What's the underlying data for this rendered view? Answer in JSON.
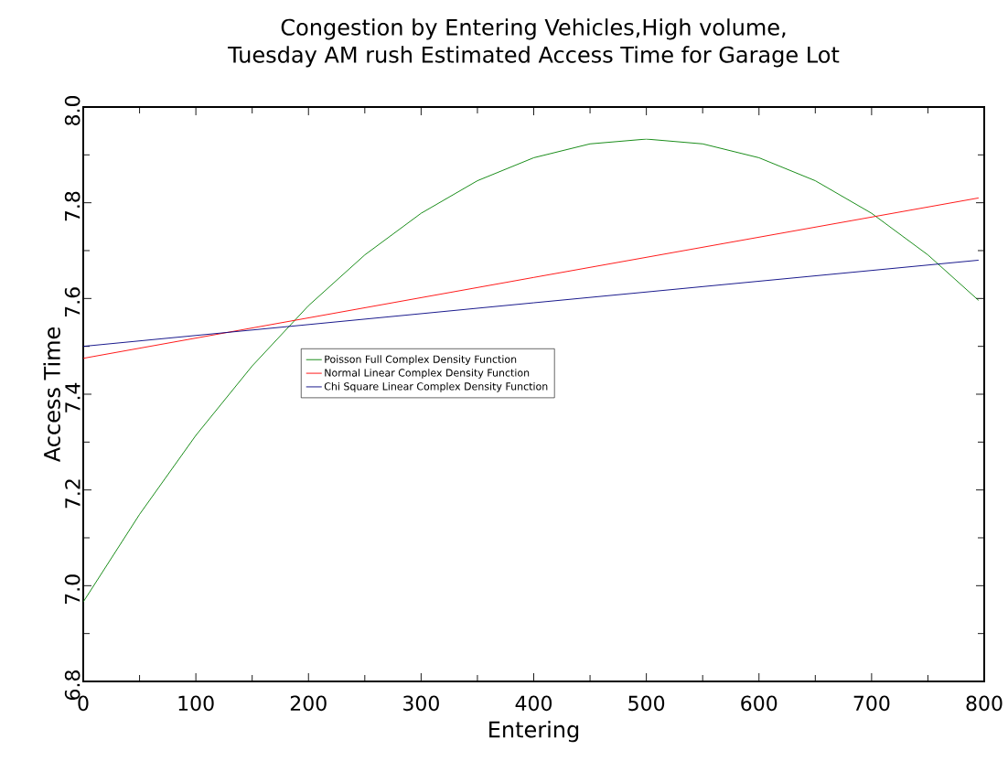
{
  "chart_data": {
    "type": "line",
    "title": "Congestion by Entering Vehicles,High volume,",
    "subtitle": "Tuesday AM rush Estimated Access Time for Garage Lot",
    "xlabel": "Entering",
    "ylabel": "Access Time",
    "xlim": [
      0,
      800
    ],
    "ylim": [
      6.8,
      8.0
    ],
    "xticks": [
      0,
      100,
      200,
      300,
      400,
      500,
      600,
      700,
      800
    ],
    "yticks": [
      {
        "value": 6.8,
        "label": "6.8"
      },
      {
        "value": 7.0,
        "label": "7.0"
      },
      {
        "value": 7.2,
        "label": "7.2"
      },
      {
        "value": 7.4,
        "label": "7.4"
      },
      {
        "value": 7.6,
        "label": "7.6"
      },
      {
        "value": 7.8,
        "label": "7.8"
      },
      {
        "value": 8.0,
        "label": "8.0"
      }
    ],
    "grid": false,
    "legend": "center",
    "marker": "none",
    "line_style": "solid",
    "series": [
      {
        "name": "Poisson Full Complex Density Function",
        "color": "#008000",
        "x": [
          0,
          50,
          100,
          150,
          200,
          250,
          300,
          350,
          400,
          450,
          500,
          550,
          600,
          650,
          700,
          750,
          795
        ],
        "values": [
          6.966,
          7.149,
          7.314,
          7.459,
          7.585,
          7.691,
          7.778,
          7.846,
          7.894,
          7.923,
          7.933,
          7.923,
          7.894,
          7.846,
          7.778,
          7.691,
          7.596
        ]
      },
      {
        "name": "Normal Linear Complex Density Function",
        "color": "#ff0000",
        "x": [
          0,
          400,
          795
        ],
        "values": [
          7.475,
          7.644,
          7.81
        ]
      },
      {
        "name": "Chi Square Linear Complex Density Function",
        "color": "#000080",
        "x": [
          0,
          400,
          795
        ],
        "values": [
          7.5,
          7.591,
          7.68
        ]
      }
    ]
  }
}
